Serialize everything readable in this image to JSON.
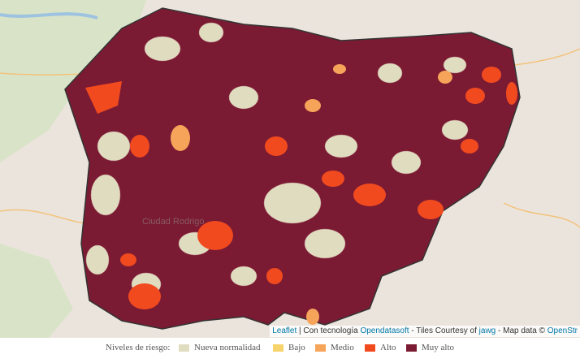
{
  "legend": {
    "title": "Niveles de riesgo:",
    "items": [
      {
        "label": "Nueva normalidad",
        "color": "#e0dcc0"
      },
      {
        "label": "Bajo",
        "color": "#f7d46b"
      },
      {
        "label": "Medio",
        "color": "#f6a45a"
      },
      {
        "label": "Alto",
        "color": "#f24a1f"
      },
      {
        "label": "Muy alto",
        "color": "#7b1a33"
      }
    ]
  },
  "attribution": [
    "Leaflet",
    "| Con tecnología",
    "Opendatasoft",
    "- Tiles Courtesy of",
    "jawg",
    "- Map data ©",
    "OpenStr"
  ],
  "map_labels": [
    "Ciudad Rodrigo"
  ]
}
